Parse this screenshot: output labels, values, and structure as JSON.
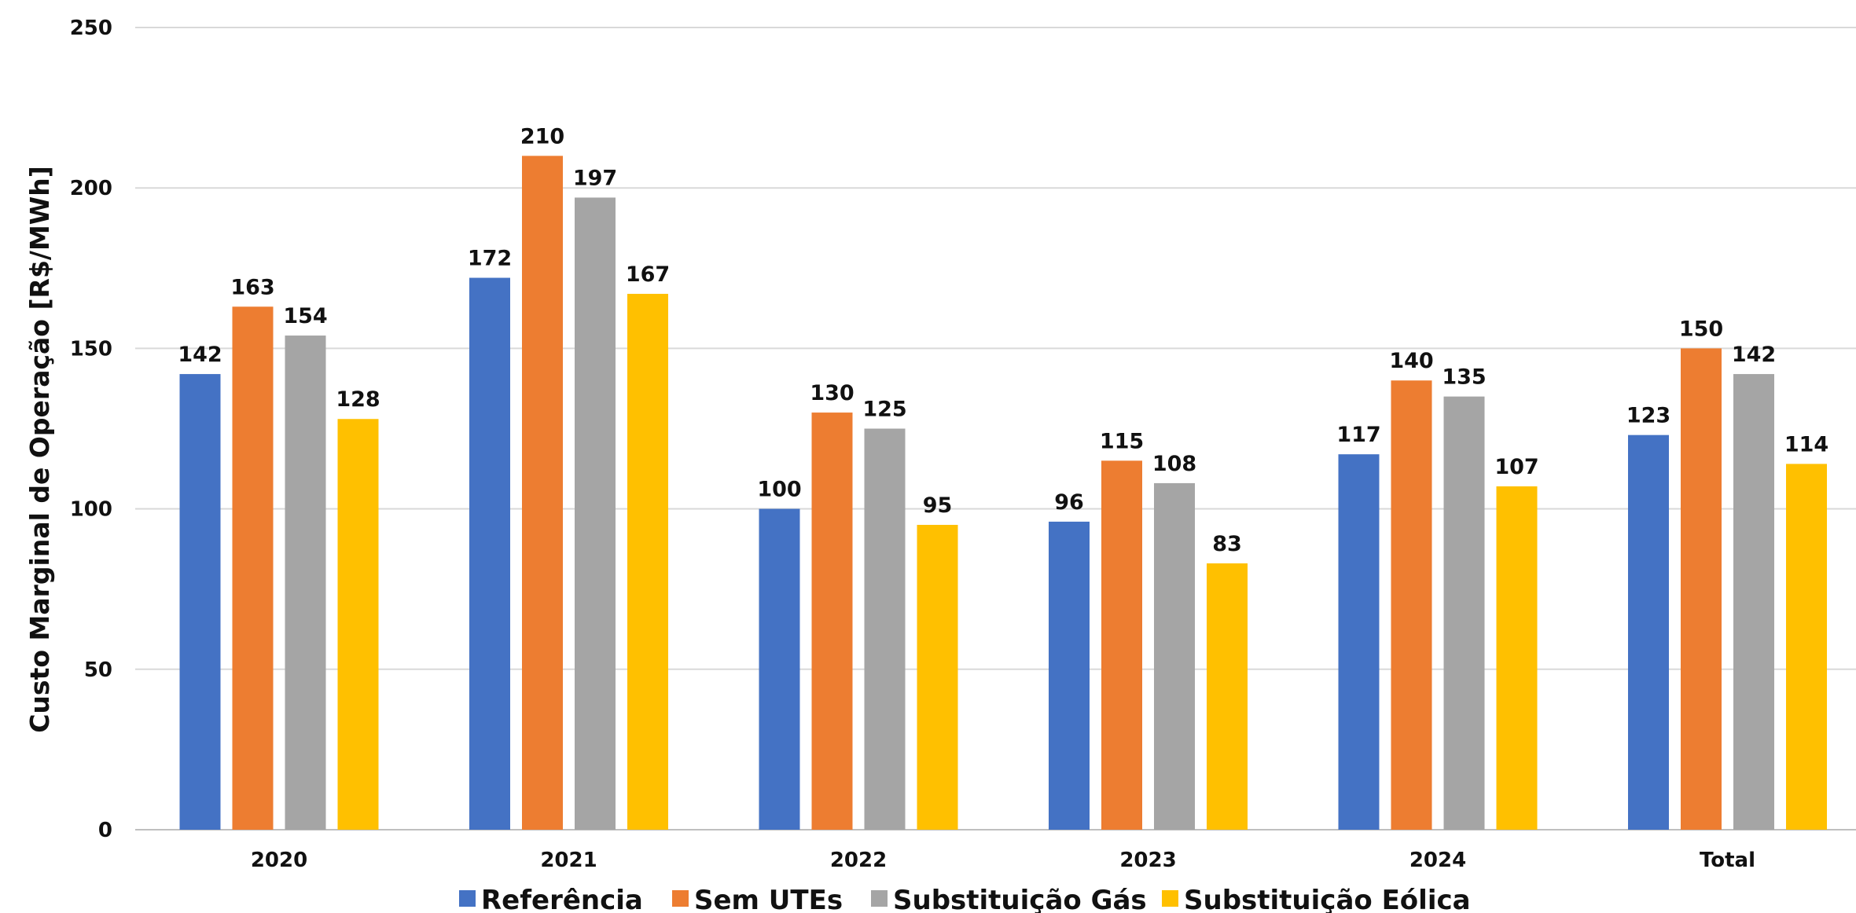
{
  "chart_data": {
    "type": "bar",
    "title": "",
    "xlabel": "",
    "ylabel": "Custo Marginal de Operação [R$/MWh]",
    "ylim": [
      0,
      250
    ],
    "yticks": [
      0,
      50,
      100,
      150,
      200,
      250
    ],
    "grid": true,
    "legend_position": "bottom",
    "categories": [
      "2020",
      "2021",
      "2022",
      "2023",
      "2024",
      "Total"
    ],
    "series": [
      {
        "name": "Referência",
        "color": "#4472C4",
        "values": [
          142,
          172,
          100,
          96,
          117,
          123
        ]
      },
      {
        "name": "Sem UTEs",
        "color": "#ED7D31",
        "values": [
          163,
          210,
          130,
          115,
          140,
          150
        ]
      },
      {
        "name": "Substituição Gás",
        "color": "#A5A5A5",
        "values": [
          154,
          197,
          125,
          108,
          135,
          142
        ]
      },
      {
        "name": "Substituição Eólica",
        "color": "#FFC000",
        "values": [
          128,
          167,
          95,
          83,
          107,
          114
        ]
      }
    ]
  }
}
